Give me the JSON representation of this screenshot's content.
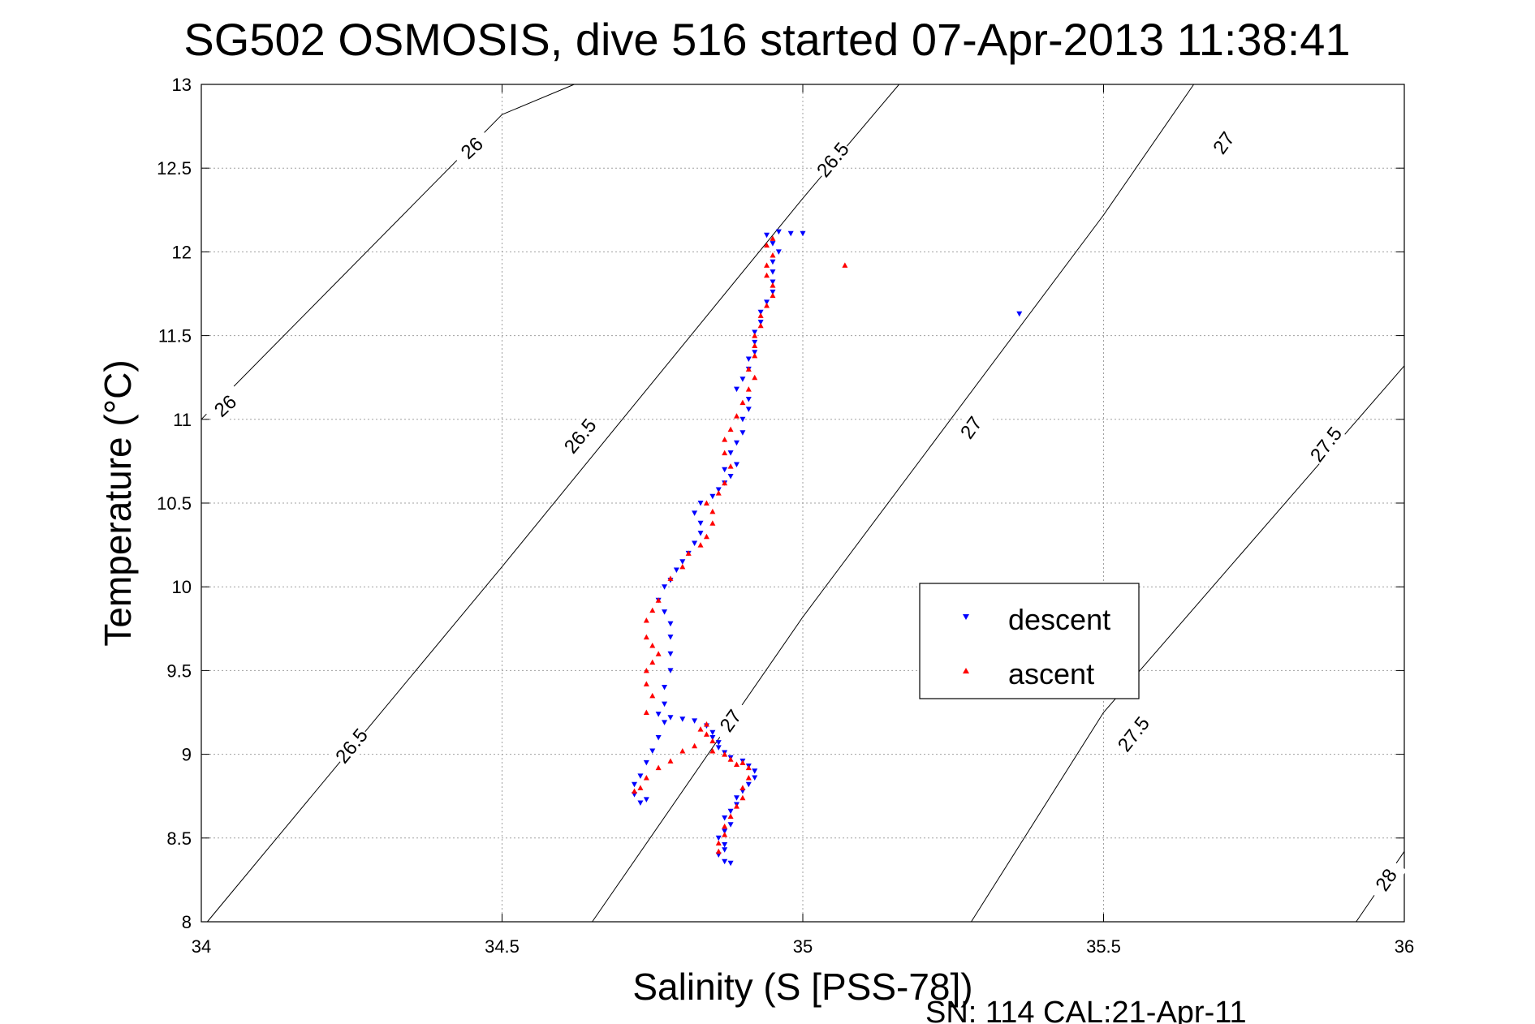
{
  "chart_data": {
    "type": "scatter",
    "title": "SG502 OSMOSIS, dive 516 started 07-Apr-2013 11:38:41",
    "xlabel": "Salinity (S [PSS-78])",
    "ylabel": "Temperature (°C)",
    "xlim": [
      34,
      36
    ],
    "ylim": [
      8,
      13
    ],
    "xticks": [
      "34",
      "34.5",
      "35",
      "35.5",
      "36"
    ],
    "yticks": [
      "8",
      "8.5",
      "9",
      "9.5",
      "10",
      "10.5",
      "11",
      "11.5",
      "12",
      "12.5",
      "13"
    ],
    "grid": true,
    "legend_position": "center-right",
    "footnote": "SN: 114  CAL:21-Apr-11",
    "contours": [
      {
        "label": "26",
        "points": [
          [
            34.0,
            11.0
          ],
          [
            34.5,
            12.82
          ],
          [
            34.62,
            13.0
          ]
        ],
        "labels_at": [
          [
            34.04,
            11.08
          ],
          [
            34.45,
            12.62
          ]
        ]
      },
      {
        "label": "26.5",
        "points": [
          [
            34.01,
            8.0
          ],
          [
            34.5,
            10.12
          ],
          [
            35.0,
            12.32
          ],
          [
            35.16,
            13.0
          ]
        ],
        "labels_at": [
          [
            34.25,
            9.05
          ],
          [
            34.63,
            10.9
          ],
          [
            35.05,
            12.55
          ]
        ]
      },
      {
        "label": "27",
        "points": [
          [
            34.65,
            8.0
          ],
          [
            35.0,
            9.82
          ],
          [
            35.5,
            12.22
          ],
          [
            35.65,
            13.0
          ]
        ],
        "labels_at": [
          [
            34.88,
            9.2
          ],
          [
            35.28,
            10.95
          ],
          [
            35.7,
            12.65
          ]
        ]
      },
      {
        "label": "27.5",
        "points": [
          [
            35.28,
            8.0
          ],
          [
            35.5,
            9.25
          ],
          [
            36.0,
            11.32
          ]
        ],
        "labels_at": [
          [
            35.55,
            9.12
          ],
          [
            35.87,
            10.85
          ]
        ]
      },
      {
        "label": "28",
        "points": [
          [
            35.92,
            8.0
          ],
          [
            36.0,
            8.42
          ]
        ],
        "labels_at": [
          [
            35.97,
            8.25
          ]
        ]
      }
    ],
    "series": [
      {
        "name": "descent",
        "color": "#0000ff",
        "marker": "triangle-down",
        "points": [
          [
            34.88,
            8.35
          ],
          [
            34.87,
            8.36
          ],
          [
            34.86,
            8.4
          ],
          [
            34.87,
            8.43
          ],
          [
            34.87,
            8.46
          ],
          [
            34.86,
            8.5
          ],
          [
            34.87,
            8.54
          ],
          [
            34.88,
            8.58
          ],
          [
            34.87,
            8.62
          ],
          [
            34.88,
            8.66
          ],
          [
            34.89,
            8.7
          ],
          [
            34.89,
            8.74
          ],
          [
            34.9,
            8.78
          ],
          [
            34.91,
            8.82
          ],
          [
            34.92,
            8.86
          ],
          [
            34.92,
            8.9
          ],
          [
            34.91,
            8.93
          ],
          [
            34.9,
            8.96
          ],
          [
            34.88,
            8.98
          ],
          [
            34.87,
            9.01
          ],
          [
            34.86,
            9.04
          ],
          [
            34.86,
            9.07
          ],
          [
            34.85,
            9.1
          ],
          [
            34.85,
            9.13
          ],
          [
            34.84,
            9.17
          ],
          [
            34.82,
            9.2
          ],
          [
            34.8,
            9.21
          ],
          [
            34.78,
            9.22
          ],
          [
            34.77,
            9.19
          ],
          [
            34.76,
            9.1
          ],
          [
            34.75,
            9.02
          ],
          [
            34.74,
            8.95
          ],
          [
            34.73,
            8.87
          ],
          [
            34.72,
            8.82
          ],
          [
            34.72,
            8.76
          ],
          [
            34.73,
            8.71
          ],
          [
            34.74,
            8.73
          ],
          [
            34.76,
            9.24
          ],
          [
            34.77,
            9.3
          ],
          [
            34.77,
            9.4
          ],
          [
            34.78,
            9.5
          ],
          [
            34.78,
            9.6
          ],
          [
            34.78,
            9.7
          ],
          [
            34.78,
            9.78
          ],
          [
            34.77,
            9.85
          ],
          [
            34.76,
            9.92
          ],
          [
            34.77,
            10.0
          ],
          [
            34.78,
            10.04
          ],
          [
            34.79,
            10.1
          ],
          [
            34.8,
            10.15
          ],
          [
            34.81,
            10.2
          ],
          [
            34.82,
            10.26
          ],
          [
            34.83,
            10.32
          ],
          [
            34.83,
            10.38
          ],
          [
            34.82,
            10.44
          ],
          [
            34.83,
            10.5
          ],
          [
            34.85,
            10.54
          ],
          [
            34.86,
            10.58
          ],
          [
            34.87,
            10.62
          ],
          [
            34.88,
            10.66
          ],
          [
            34.87,
            10.7
          ],
          [
            34.89,
            10.73
          ],
          [
            34.88,
            10.8
          ],
          [
            34.89,
            10.86
          ],
          [
            34.9,
            10.92
          ],
          [
            34.9,
            11.0
          ],
          [
            34.91,
            11.06
          ],
          [
            34.91,
            11.12
          ],
          [
            34.89,
            11.18
          ],
          [
            34.9,
            11.24
          ],
          [
            34.91,
            11.3
          ],
          [
            34.91,
            11.36
          ],
          [
            34.92,
            11.4
          ],
          [
            34.92,
            11.46
          ],
          [
            34.92,
            11.52
          ],
          [
            34.93,
            11.58
          ],
          [
            34.93,
            11.64
          ],
          [
            34.94,
            11.7
          ],
          [
            34.95,
            11.76
          ],
          [
            34.95,
            11.82
          ],
          [
            34.95,
            11.88
          ],
          [
            34.95,
            11.94
          ],
          [
            34.96,
            12.0
          ],
          [
            34.95,
            12.05
          ],
          [
            34.94,
            12.1
          ],
          [
            34.96,
            12.12
          ],
          [
            34.98,
            12.11
          ],
          [
            35.0,
            12.11
          ],
          [
            35.36,
            11.63
          ]
        ]
      },
      {
        "name": "ascent",
        "color": "#ff0000",
        "marker": "triangle-up",
        "points": [
          [
            34.86,
            8.42
          ],
          [
            34.86,
            8.47
          ],
          [
            34.87,
            8.52
          ],
          [
            34.87,
            8.57
          ],
          [
            34.88,
            8.63
          ],
          [
            34.89,
            8.69
          ],
          [
            34.9,
            8.74
          ],
          [
            34.9,
            8.8
          ],
          [
            34.91,
            8.86
          ],
          [
            34.91,
            8.92
          ],
          [
            34.9,
            8.95
          ],
          [
            34.89,
            8.94
          ],
          [
            34.88,
            8.97
          ],
          [
            34.87,
            9.0
          ],
          [
            34.85,
            9.02
          ],
          [
            34.85,
            9.08
          ],
          [
            34.84,
            9.12
          ],
          [
            34.83,
            9.15
          ],
          [
            34.84,
            9.18
          ],
          [
            34.82,
            9.05
          ],
          [
            34.8,
            9.02
          ],
          [
            34.78,
            8.96
          ],
          [
            34.76,
            8.92
          ],
          [
            34.74,
            8.86
          ],
          [
            34.73,
            8.8
          ],
          [
            34.72,
            8.78
          ],
          [
            34.74,
            9.25
          ],
          [
            34.75,
            9.35
          ],
          [
            34.74,
            9.42
          ],
          [
            34.74,
            9.5
          ],
          [
            34.75,
            9.55
          ],
          [
            34.76,
            9.6
          ],
          [
            34.75,
            9.65
          ],
          [
            34.74,
            9.7
          ],
          [
            34.74,
            9.8
          ],
          [
            34.75,
            9.86
          ],
          [
            34.76,
            9.92
          ],
          [
            34.78,
            10.05
          ],
          [
            34.8,
            10.12
          ],
          [
            34.81,
            10.2
          ],
          [
            34.83,
            10.25
          ],
          [
            34.84,
            10.3
          ],
          [
            34.85,
            10.38
          ],
          [
            34.85,
            10.45
          ],
          [
            34.84,
            10.5
          ],
          [
            34.86,
            10.56
          ],
          [
            34.87,
            10.62
          ],
          [
            34.88,
            10.72
          ],
          [
            34.87,
            10.8
          ],
          [
            34.87,
            10.88
          ],
          [
            34.88,
            10.94
          ],
          [
            34.89,
            11.02
          ],
          [
            34.9,
            11.1
          ],
          [
            34.91,
            11.18
          ],
          [
            34.92,
            11.25
          ],
          [
            34.91,
            11.3
          ],
          [
            34.92,
            11.38
          ],
          [
            34.92,
            11.44
          ],
          [
            34.92,
            11.5
          ],
          [
            34.93,
            11.56
          ],
          [
            34.93,
            11.62
          ],
          [
            34.94,
            11.68
          ],
          [
            34.95,
            11.74
          ],
          [
            34.95,
            11.8
          ],
          [
            34.94,
            11.86
          ],
          [
            34.94,
            11.92
          ],
          [
            34.95,
            11.98
          ],
          [
            34.94,
            12.04
          ],
          [
            34.95,
            12.08
          ],
          [
            35.07,
            11.92
          ]
        ]
      }
    ]
  }
}
